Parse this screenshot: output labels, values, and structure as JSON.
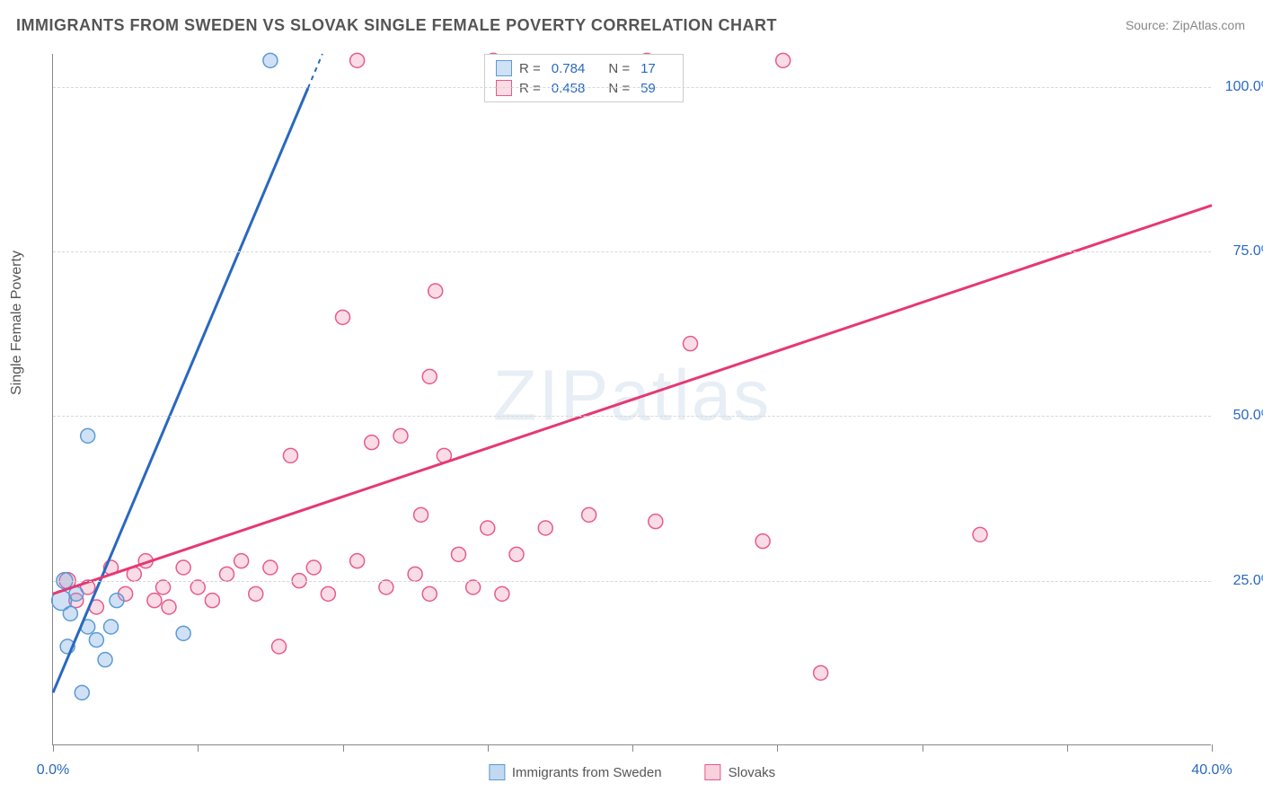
{
  "title": "IMMIGRANTS FROM SWEDEN VS SLOVAK SINGLE FEMALE POVERTY CORRELATION CHART",
  "source": "Source: ZipAtlas.com",
  "watermark": "ZIPatlas",
  "chart": {
    "type": "scatter",
    "xlim": [
      0,
      40
    ],
    "ylim": [
      0,
      105
    ],
    "x_ticks": [
      0,
      5,
      10,
      15,
      20,
      25,
      30,
      35,
      40
    ],
    "x_tick_labels": {
      "0": "0.0%",
      "40": "40.0%"
    },
    "y_ticks": [
      25,
      50,
      75,
      100
    ],
    "y_tick_labels": [
      "25.0%",
      "50.0%",
      "75.0%",
      "100.0%"
    ],
    "ylabel": "Single Female Poverty",
    "background_color": "#ffffff",
    "grid_color": "#d8d8d8",
    "axis_color": "#888888",
    "series": [
      {
        "name": "Immigrants from Sweden",
        "color_fill": "rgba(120,170,225,0.35)",
        "color_stroke": "#5a9bd5",
        "line_color": "#2968c0",
        "R": "0.784",
        "N": "17",
        "trend": {
          "x1": 0,
          "y1": 8,
          "x2": 9.3,
          "y2": 105,
          "dashed_from_x": 8.8
        },
        "points": [
          {
            "x": 0.3,
            "y": 22,
            "r": 11
          },
          {
            "x": 0.4,
            "y": 25,
            "r": 9
          },
          {
            "x": 0.6,
            "y": 20,
            "r": 8
          },
          {
            "x": 0.8,
            "y": 23,
            "r": 8
          },
          {
            "x": 1.2,
            "y": 18,
            "r": 8
          },
          {
            "x": 0.5,
            "y": 15,
            "r": 8
          },
          {
            "x": 1.0,
            "y": 8,
            "r": 8
          },
          {
            "x": 1.8,
            "y": 13,
            "r": 8
          },
          {
            "x": 1.5,
            "y": 16,
            "r": 8
          },
          {
            "x": 2.0,
            "y": 18,
            "r": 8
          },
          {
            "x": 2.2,
            "y": 22,
            "r": 8
          },
          {
            "x": 1.2,
            "y": 47,
            "r": 8
          },
          {
            "x": 4.5,
            "y": 17,
            "r": 8
          },
          {
            "x": 7.5,
            "y": 104,
            "r": 8
          }
        ]
      },
      {
        "name": "Slovaks",
        "color_fill": "rgba(240,140,170,0.30)",
        "color_stroke": "#e75a8d",
        "line_color": "#e63872",
        "R": "0.458",
        "N": "59",
        "trend": {
          "x1": 0,
          "y1": 23,
          "x2": 40,
          "y2": 82
        },
        "points": [
          {
            "x": 0.5,
            "y": 25,
            "r": 9
          },
          {
            "x": 0.8,
            "y": 22,
            "r": 8
          },
          {
            "x": 1.2,
            "y": 24,
            "r": 8
          },
          {
            "x": 1.5,
            "y": 21,
            "r": 8
          },
          {
            "x": 2.0,
            "y": 27,
            "r": 8
          },
          {
            "x": 2.5,
            "y": 23,
            "r": 8
          },
          {
            "x": 2.8,
            "y": 26,
            "r": 8
          },
          {
            "x": 3.2,
            "y": 28,
            "r": 8
          },
          {
            "x": 3.5,
            "y": 22,
            "r": 8
          },
          {
            "x": 3.8,
            "y": 24,
            "r": 8
          },
          {
            "x": 4.0,
            "y": 21,
            "r": 8
          },
          {
            "x": 4.5,
            "y": 27,
            "r": 8
          },
          {
            "x": 5.0,
            "y": 24,
            "r": 8
          },
          {
            "x": 5.5,
            "y": 22,
            "r": 8
          },
          {
            "x": 6.0,
            "y": 26,
            "r": 8
          },
          {
            "x": 6.5,
            "y": 28,
            "r": 8
          },
          {
            "x": 7.0,
            "y": 23,
            "r": 8
          },
          {
            "x": 7.5,
            "y": 27,
            "r": 8
          },
          {
            "x": 7.8,
            "y": 15,
            "r": 8
          },
          {
            "x": 8.5,
            "y": 25,
            "r": 8
          },
          {
            "x": 8.2,
            "y": 44,
            "r": 8
          },
          {
            "x": 9.0,
            "y": 27,
            "r": 8
          },
          {
            "x": 9.5,
            "y": 23,
            "r": 8
          },
          {
            "x": 10.0,
            "y": 65,
            "r": 8
          },
          {
            "x": 10.5,
            "y": 28,
            "r": 8
          },
          {
            "x": 10.5,
            "y": 104,
            "r": 8
          },
          {
            "x": 11.0,
            "y": 46,
            "r": 8
          },
          {
            "x": 11.5,
            "y": 24,
            "r": 8
          },
          {
            "x": 12.0,
            "y": 47,
            "r": 8
          },
          {
            "x": 12.5,
            "y": 26,
            "r": 8
          },
          {
            "x": 12.7,
            "y": 35,
            "r": 8
          },
          {
            "x": 13.0,
            "y": 23,
            "r": 8
          },
          {
            "x": 13.0,
            "y": 56,
            "r": 8
          },
          {
            "x": 13.2,
            "y": 69,
            "r": 8
          },
          {
            "x": 13.5,
            "y": 44,
            "r": 8
          },
          {
            "x": 14.0,
            "y": 29,
            "r": 8
          },
          {
            "x": 14.5,
            "y": 24,
            "r": 8
          },
          {
            "x": 15.0,
            "y": 33,
            "r": 8
          },
          {
            "x": 15.2,
            "y": 104,
            "r": 8
          },
          {
            "x": 15.5,
            "y": 23,
            "r": 8
          },
          {
            "x": 16.0,
            "y": 29,
            "r": 8
          },
          {
            "x": 17.0,
            "y": 33,
            "r": 8
          },
          {
            "x": 18.5,
            "y": 35,
            "r": 8
          },
          {
            "x": 20.5,
            "y": 104,
            "r": 8
          },
          {
            "x": 20.8,
            "y": 34,
            "r": 8
          },
          {
            "x": 22.0,
            "y": 61,
            "r": 8
          },
          {
            "x": 24.5,
            "y": 31,
            "r": 8
          },
          {
            "x": 25.2,
            "y": 104,
            "r": 8
          },
          {
            "x": 26.5,
            "y": 11,
            "r": 8
          },
          {
            "x": 32.0,
            "y": 32,
            "r": 8
          }
        ]
      }
    ],
    "legend_bottom": [
      {
        "label": "Immigrants from Sweden",
        "fill": "rgba(120,170,225,0.45)",
        "stroke": "#5a9bd5"
      },
      {
        "label": "Slovaks",
        "fill": "rgba(240,140,170,0.40)",
        "stroke": "#e75a8d"
      }
    ]
  }
}
